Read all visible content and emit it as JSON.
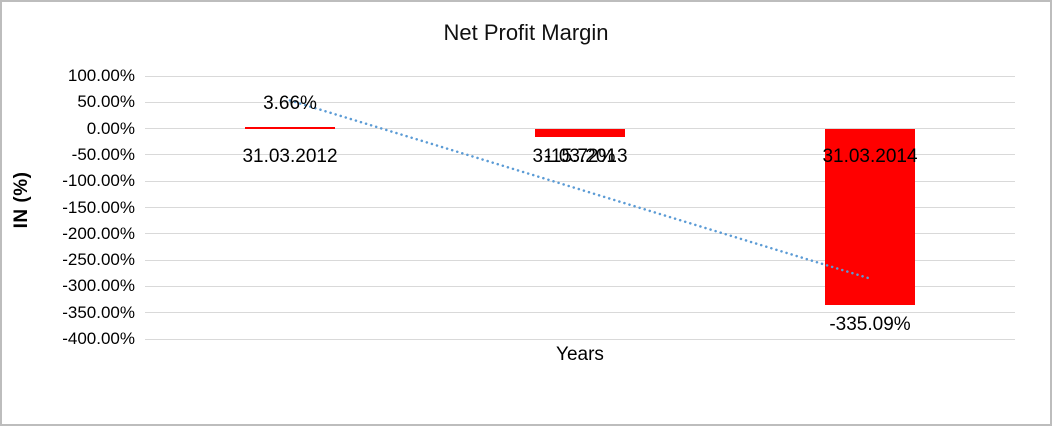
{
  "chart_data": {
    "type": "bar",
    "title": "Net Profit Margin",
    "xlabel": "Years",
    "ylabel": "IN (%)",
    "categories": [
      "31.03.2012",
      "31.03.2013",
      "31.03.2014"
    ],
    "values": [
      3.66,
      -15.72,
      -335.09
    ],
    "data_labels": [
      "3.66%",
      "-15.72%",
      "-335.09%"
    ],
    "ylim": [
      -400,
      100
    ],
    "ytick_step": 50,
    "yticks": [
      "100.00%",
      "50.00%",
      "0.00%",
      "-50.00%",
      "-100.00%",
      "-150.00%",
      "-200.00%",
      "-250.00%",
      "-300.00%",
      "-350.00%",
      "-400.00%"
    ],
    "grid": true,
    "legend": "none",
    "bar_color": "#FF0000",
    "gridline_color": "#D9D9D9",
    "label_color": "#000000",
    "trendline": {
      "type": "linear",
      "style": "dotted",
      "color": "#5B9BD5"
    }
  }
}
